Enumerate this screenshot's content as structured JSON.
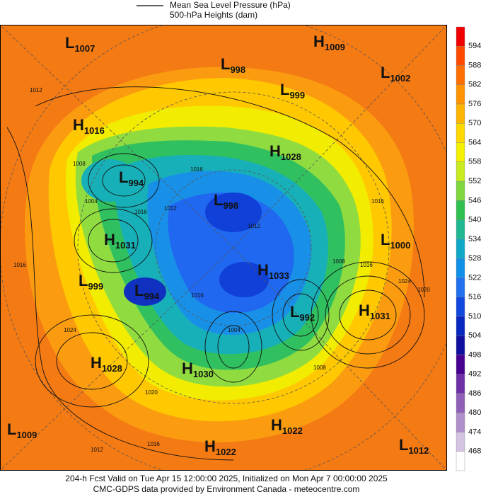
{
  "legend": {
    "line_label": "Mean Sea Level Pressure (hPa)",
    "fill_label": "500-hPa Heights (dam)"
  },
  "colorbar": {
    "labels": [
      594,
      588,
      582,
      576,
      570,
      564,
      558,
      552,
      546,
      540,
      534,
      528,
      522,
      516,
      510,
      504,
      498,
      492,
      486,
      480,
      474,
      468
    ],
    "colors": [
      "#f00000",
      "#ff4a00",
      "#ff6e00",
      "#ff9400",
      "#ffb400",
      "#ffd800",
      "#f4f000",
      "#c8ec20",
      "#80d840",
      "#30c050",
      "#20b890",
      "#10a8c8",
      "#1090e8",
      "#2070f0",
      "#1048e0",
      "#0828c0",
      "#1010a0",
      "#480090",
      "#7030a8",
      "#9060b8",
      "#b090cc",
      "#d4c4e4",
      "#ffffff"
    ]
  },
  "centers": [
    {
      "type": "L",
      "value": 1007
    },
    {
      "type": "H",
      "value": 1009
    },
    {
      "type": "L",
      "value": 998
    },
    {
      "type": "L",
      "value": 1002
    },
    {
      "type": "L",
      "value": 999
    },
    {
      "type": "H",
      "value": 1016
    },
    {
      "type": "H",
      "value": 1028
    },
    {
      "type": "L",
      "value": 994
    },
    {
      "type": "L",
      "value": 998
    },
    {
      "type": "H",
      "value": 1031
    },
    {
      "type": "L",
      "value": 1000
    },
    {
      "type": "L",
      "value": 999
    },
    {
      "type": "H",
      "value": 1033
    },
    {
      "type": "L",
      "value": 994
    },
    {
      "type": "H",
      "value": 1031
    },
    {
      "type": "L",
      "value": 992
    },
    {
      "type": "H",
      "value": 1028
    },
    {
      "type": "H",
      "value": 1030
    },
    {
      "type": "L",
      "value": 1009
    },
    {
      "type": "H",
      "value": 1022
    },
    {
      "type": "H",
      "value": 1022
    },
    {
      "type": "L",
      "value": 1012
    }
  ],
  "contour_labels": [
    1012,
    1016,
    1008,
    1004,
    1016,
    1016,
    1012,
    1016,
    1024,
    1024,
    1020,
    1020,
    1016,
    1012,
    1016,
    1008,
    1008,
    1012,
    1016,
    1004
  ],
  "footer": {
    "line1": "204-h Fcst Valid on Tue Apr 15 12:00:00 2025, Initialized on Mon Apr  7 00:00:00 2025",
    "line2": "CMC-GDPS data provided by Environment Canada - meteocentre.com"
  }
}
